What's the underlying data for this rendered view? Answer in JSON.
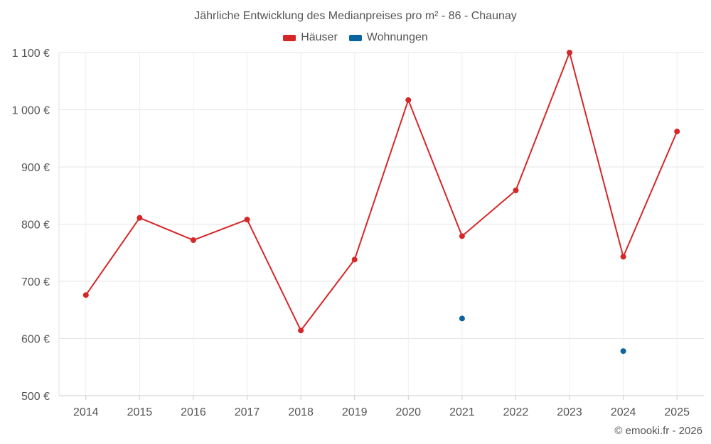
{
  "chart_data": {
    "type": "line",
    "title": "Jährliche Entwicklung des Medianpreises pro m² - 86 - Chaunay",
    "categories": [
      "2014",
      "2015",
      "2016",
      "2017",
      "2018",
      "2019",
      "2020",
      "2021",
      "2022",
      "2023",
      "2024",
      "2025"
    ],
    "series": [
      {
        "name": "Häuser",
        "color": "#d62728",
        "values": [
          676,
          811,
          772,
          808,
          614,
          738,
          1017,
          779,
          859,
          1100,
          743,
          962
        ]
      },
      {
        "name": "Wohnungen",
        "color": "#0a64a0",
        "values": [
          null,
          null,
          null,
          null,
          null,
          null,
          null,
          635,
          null,
          null,
          578,
          null
        ]
      }
    ],
    "ylim": [
      500,
      1100
    ],
    "yticks": [
      500,
      600,
      700,
      800,
      900,
      1000,
      1100
    ],
    "ytick_labels": [
      "500 €",
      "600 €",
      "700 €",
      "800 €",
      "900 €",
      "1 000 €",
      "1 100 €"
    ],
    "xlabel": "",
    "ylabel": "",
    "grid": true,
    "legend_position": "top-center"
  },
  "credit": "© emooki.fr - 2026"
}
